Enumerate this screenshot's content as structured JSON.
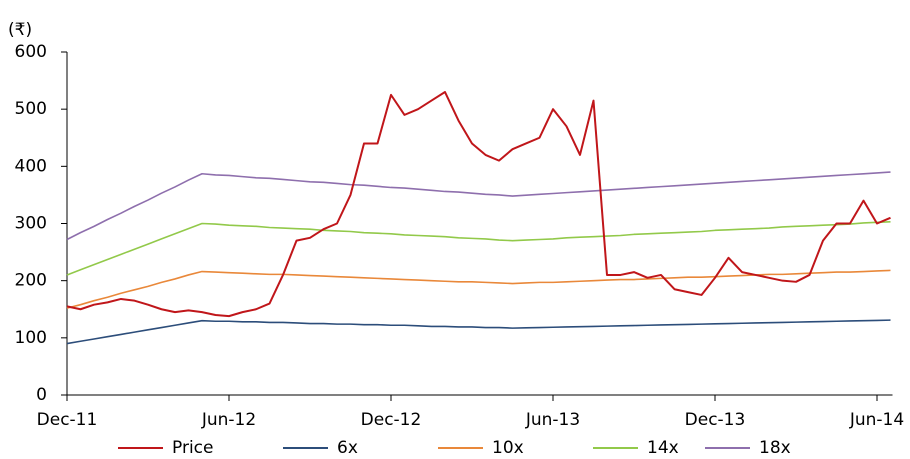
{
  "chart_data": {
    "type": "line",
    "y_unit_label": "(₹)",
    "categories": [
      "Dec-11",
      null,
      null,
      null,
      null,
      null,
      null,
      null,
      null,
      null,
      null,
      null,
      "Jun-12",
      null,
      null,
      null,
      null,
      null,
      null,
      null,
      null,
      null,
      null,
      null,
      "Dec-12",
      null,
      null,
      null,
      null,
      null,
      null,
      null,
      null,
      null,
      null,
      null,
      "Jun-13",
      null,
      null,
      null,
      null,
      null,
      null,
      null,
      null,
      null,
      null,
      null,
      "Dec-13",
      null,
      null,
      null,
      null,
      null,
      null,
      null,
      null,
      null,
      null,
      null,
      "Jun-14",
      null
    ],
    "series": [
      {
        "name": "Price",
        "color": "#c0161a",
        "values": [
          155,
          150,
          158,
          162,
          168,
          165,
          158,
          150,
          145,
          148,
          145,
          140,
          138,
          145,
          150,
          160,
          210,
          270,
          275,
          290,
          300,
          350,
          440,
          440,
          525,
          490,
          500,
          515,
          530,
          480,
          440,
          420,
          410,
          430,
          440,
          450,
          500,
          470,
          420,
          515,
          210,
          210,
          215,
          205,
          210,
          185,
          180,
          175,
          205,
          240,
          215,
          210,
          205,
          200,
          198,
          210,
          270,
          300,
          300,
          340,
          300,
          310
        ]
      },
      {
        "name": "6x",
        "color": "#2c4d7a",
        "values": [
          90,
          94,
          98,
          102,
          106,
          110,
          114,
          118,
          122,
          126,
          130,
          129,
          129,
          128,
          128,
          127,
          127,
          126,
          125,
          125,
          124,
          124,
          123,
          123,
          122,
          122,
          121,
          120,
          120,
          119,
          119,
          118,
          118,
          117,
          117.5,
          118,
          118.5,
          119,
          119.5,
          120,
          120.5,
          121,
          121.5,
          122,
          122.5,
          123,
          123.5,
          124,
          124.5,
          125,
          125.5,
          126,
          126.5,
          127,
          127.5,
          128,
          128.5,
          129,
          129.5,
          130,
          130.5,
          131
        ]
      },
      {
        "name": "10x",
        "color": "#e9883a",
        "values": [
          152,
          158,
          165,
          171,
          178,
          184,
          190,
          197,
          203,
          210,
          216,
          215,
          214,
          213,
          212,
          211,
          211,
          210,
          209,
          208,
          207,
          206,
          205,
          204,
          203,
          202,
          201,
          200,
          199,
          198,
          198,
          197,
          196,
          195,
          196,
          197,
          197,
          198,
          199,
          200,
          201,
          202,
          202,
          203,
          204,
          205,
          206,
          206,
          207,
          208,
          209,
          210,
          211,
          211,
          212,
          213,
          214,
          215,
          215,
          216,
          217,
          218
        ]
      },
      {
        "name": "14x",
        "color": "#92c94a",
        "values": [
          210,
          219,
          228,
          237,
          246,
          255,
          264,
          273,
          282,
          291,
          300,
          299,
          297,
          296,
          295,
          293,
          292,
          291,
          290,
          288,
          287,
          286,
          284,
          283,
          282,
          280,
          279,
          278,
          277,
          275,
          274,
          273,
          271,
          270,
          271,
          272,
          273,
          275,
          276,
          277,
          278,
          279,
          281,
          282,
          283,
          284,
          285,
          286,
          288,
          289,
          290,
          291,
          292,
          294,
          295,
          296,
          297,
          298,
          299,
          301,
          302,
          303
        ]
      },
      {
        "name": "18x",
        "color": "#8e6fad",
        "values": [
          272,
          284,
          295,
          307,
          318,
          330,
          341,
          353,
          364,
          376,
          387,
          385,
          384,
          382,
          380,
          379,
          377,
          375,
          373,
          372,
          370,
          368,
          367,
          365,
          363,
          362,
          360,
          358,
          356,
          355,
          353,
          351,
          350,
          348,
          349.5,
          351,
          352.5,
          354,
          355.5,
          357,
          358.5,
          360,
          361.5,
          363,
          364.5,
          366,
          367.5,
          369,
          370.5,
          372,
          373.5,
          375,
          376.5,
          378,
          379.5,
          381,
          382.5,
          384,
          385.5,
          387,
          388.5,
          390
        ]
      }
    ],
    "ylim": [
      0,
      600
    ],
    "yticks": [
      0,
      100,
      200,
      300,
      400,
      500,
      600
    ],
    "grid": false,
    "legend": "bottom"
  }
}
